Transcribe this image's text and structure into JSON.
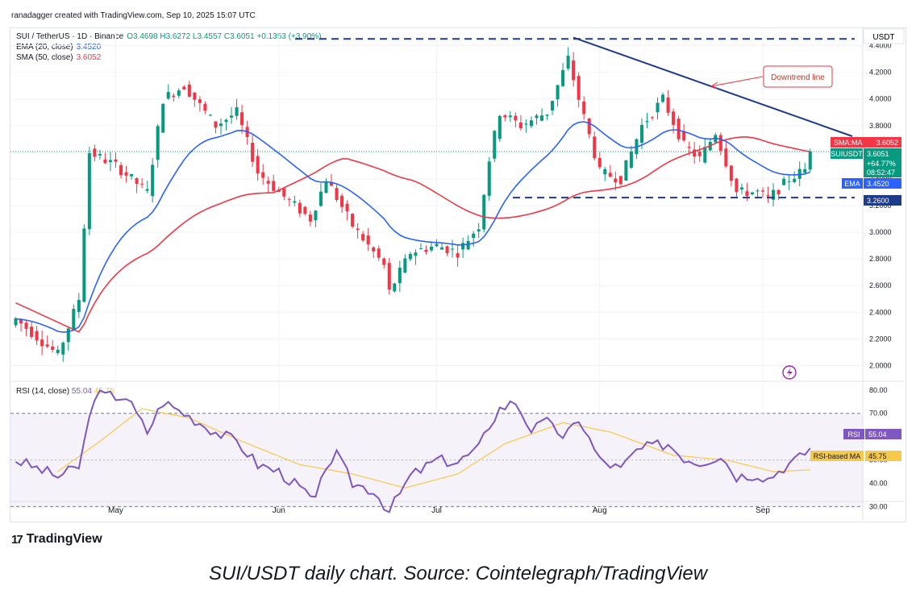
{
  "header": {
    "byline": "ranadagger created with TradingView.com, Sep 10, 2025 15:07 UTC",
    "symbol": "SUI / TetherUS · 1D · Binance",
    "ohlc": "O3.4698 H3.6272 L3.4557 C3.6051 +0.1353 (+3.90%)",
    "ema_label": "EMA (20, close)",
    "ema_value": "3.4520",
    "sma_label": "SMA (50, close)",
    "sma_value": "3.6052",
    "rsi_label": "RSI (14, close)",
    "rsi_value": "55.04",
    "rsi_ma_value": "45.75"
  },
  "footer": {
    "logo": "TradingView",
    "caption": "SUI/USDT daily chart. Source: Cointelegraph/TradingView"
  },
  "colors": {
    "up": "#089981",
    "down": "#f23645",
    "ema": "#2962ff",
    "sma": "#f23645",
    "rsi": "#7e57c2",
    "rsi_ma": "#f7c948",
    "trend": "#1e3a8a"
  },
  "chart_data": [
    {
      "type": "candlestick",
      "currency": "USDT",
      "x_tick_labels": [
        "May",
        "Jun",
        "Jul",
        "Aug",
        "Sep"
      ],
      "y_tick_labels": [
        "2.0000",
        "2.2000",
        "2.4000",
        "2.6000",
        "2.8000",
        "3.0000",
        "3.2000",
        "3.4000",
        "3.6000",
        "3.8000",
        "4.0000",
        "4.2000",
        "4.4000"
      ],
      "ylim": [
        1.9,
        4.5
      ],
      "close_keypoints": [
        [
          "2025-04-12",
          2.35
        ],
        [
          "2025-04-20",
          2.08
        ],
        [
          "2025-04-24",
          2.5
        ],
        [
          "2025-04-26",
          3.6
        ],
        [
          "2025-05-01",
          3.5
        ],
        [
          "2025-05-07",
          3.3
        ],
        [
          "2025-05-10",
          4.0
        ],
        [
          "2025-05-14",
          4.1
        ],
        [
          "2025-05-20",
          3.8
        ],
        [
          "2025-05-24",
          3.9
        ],
        [
          "2025-05-28",
          3.45
        ],
        [
          "2025-06-01",
          3.3
        ],
        [
          "2025-06-07",
          3.1
        ],
        [
          "2025-06-10",
          3.4
        ],
        [
          "2025-06-15",
          3.05
        ],
        [
          "2025-06-21",
          2.75
        ],
        [
          "2025-06-22",
          2.55
        ],
        [
          "2025-06-26",
          2.85
        ],
        [
          "2025-07-01",
          2.9
        ],
        [
          "2025-07-05",
          2.85
        ],
        [
          "2025-07-09",
          3.05
        ],
        [
          "2025-07-11",
          3.55
        ],
        [
          "2025-07-13",
          3.9
        ],
        [
          "2025-07-17",
          3.8
        ],
        [
          "2025-07-22",
          3.9
        ],
        [
          "2025-07-26",
          4.3
        ],
        [
          "2025-07-28",
          4.0
        ],
        [
          "2025-08-01",
          3.45
        ],
        [
          "2025-08-05",
          3.4
        ],
        [
          "2025-08-09",
          3.8
        ],
        [
          "2025-08-13",
          4.0
        ],
        [
          "2025-08-17",
          3.65
        ],
        [
          "2025-08-20",
          3.55
        ],
        [
          "2025-08-23",
          3.75
        ],
        [
          "2025-08-27",
          3.3
        ],
        [
          "2025-08-31",
          3.3
        ],
        [
          "2025-09-02",
          3.25
        ],
        [
          "2025-09-06",
          3.4
        ],
        [
          "2025-09-09",
          3.47
        ],
        [
          "2025-09-10",
          3.6051
        ]
      ],
      "last": {
        "open": 3.4698,
        "high": 3.6272,
        "low": 3.4557,
        "close": 3.6051
      },
      "indicators": [
        {
          "name": "EMA",
          "period": 20,
          "last": 3.452
        },
        {
          "name": "SMA",
          "period": 50,
          "last": 3.6052
        }
      ],
      "levels": [
        {
          "value": 4.45,
          "style": "dashed"
        },
        {
          "value": 3.26,
          "label": "3.2600",
          "style": "dashed"
        }
      ],
      "trendline": {
        "from": [
          "2025-07-27",
          4.46
        ],
        "to": [
          "2025-09-18",
          3.72
        ],
        "label": "Downtrend line"
      },
      "price_badges": {
        "sma_tag": "SMA:MA",
        "sma_value": "3.6052",
        "symbol_tag": "SUIUSDT",
        "symbol_price": "3.6051",
        "change": "+64.77%",
        "countdown": "08:52:47",
        "ema_tag": "EMA",
        "ema_value": "3.4520",
        "level_value": "3.2600"
      }
    },
    {
      "type": "line",
      "y_tick_labels": [
        "30.00",
        "40.00",
        "50.00",
        "60.00",
        "70.00",
        "80.00"
      ],
      "ylim": [
        26,
        82
      ],
      "bands": [
        30,
        70
      ],
      "midline": 50,
      "rsi_keypoints": [
        [
          "2025-04-12",
          50
        ],
        [
          "2025-04-20",
          43
        ],
        [
          "2025-04-24",
          47
        ],
        [
          "2025-04-27",
          78
        ],
        [
          "2025-05-03",
          77
        ],
        [
          "2025-05-07",
          62
        ],
        [
          "2025-05-10",
          75
        ],
        [
          "2025-05-14",
          70
        ],
        [
          "2025-05-20",
          62
        ],
        [
          "2025-05-24",
          58
        ],
        [
          "2025-05-28",
          48
        ],
        [
          "2025-06-01",
          45
        ],
        [
          "2025-06-05",
          38
        ],
        [
          "2025-06-08",
          32
        ],
        [
          "2025-06-10",
          48
        ],
        [
          "2025-06-12",
          52
        ],
        [
          "2025-06-15",
          40
        ],
        [
          "2025-06-19",
          37
        ],
        [
          "2025-06-22",
          28
        ],
        [
          "2025-06-26",
          43
        ],
        [
          "2025-07-01",
          50
        ],
        [
          "2025-07-05",
          49
        ],
        [
          "2025-07-09",
          55
        ],
        [
          "2025-07-11",
          65
        ],
        [
          "2025-07-13",
          72
        ],
        [
          "2025-07-16",
          75
        ],
        [
          "2025-07-19",
          63
        ],
        [
          "2025-07-23",
          67
        ],
        [
          "2025-07-25",
          58
        ],
        [
          "2025-07-28",
          68
        ],
        [
          "2025-08-01",
          50
        ],
        [
          "2025-08-05",
          46
        ],
        [
          "2025-08-08",
          54
        ],
        [
          "2025-08-11",
          56
        ],
        [
          "2025-08-14",
          57
        ],
        [
          "2025-08-17",
          51
        ],
        [
          "2025-08-20",
          49
        ],
        [
          "2025-08-24",
          52
        ],
        [
          "2025-08-27",
          43
        ],
        [
          "2025-08-31",
          44
        ],
        [
          "2025-09-02",
          42
        ],
        [
          "2025-09-05",
          47
        ],
        [
          "2025-09-08",
          51
        ],
        [
          "2025-09-10",
          55.04
        ]
      ],
      "rsi_ma_keypoints": [
        [
          "2025-04-20",
          45
        ],
        [
          "2025-04-28",
          58
        ],
        [
          "2025-05-06",
          72
        ],
        [
          "2025-05-15",
          68
        ],
        [
          "2025-05-25",
          58
        ],
        [
          "2025-06-05",
          48
        ],
        [
          "2025-06-15",
          44
        ],
        [
          "2025-06-25",
          38
        ],
        [
          "2025-07-05",
          44
        ],
        [
          "2025-07-14",
          57
        ],
        [
          "2025-07-25",
          66
        ],
        [
          "2025-08-03",
          62
        ],
        [
          "2025-08-15",
          52
        ],
        [
          "2025-08-25",
          50
        ],
        [
          "2025-09-03",
          45
        ],
        [
          "2025-09-10",
          45.75
        ]
      ],
      "badges": {
        "rsi_tag": "RSI",
        "rsi_value": "55.04",
        "ma_tag": "RSI-based MA",
        "ma_value": "45.75"
      }
    }
  ]
}
